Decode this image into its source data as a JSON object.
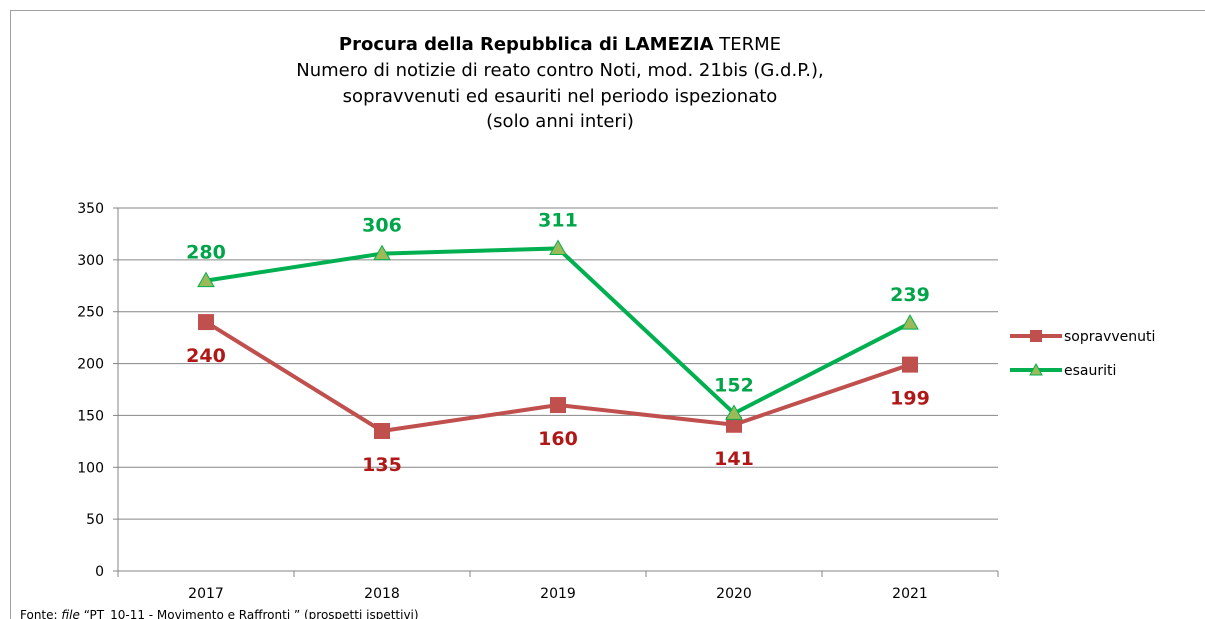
{
  "chart_data": {
    "type": "line",
    "title": [
      "Procura della Repubblica di LAMEZIA",
      "TERME"
    ],
    "subtitle": [
      "Numero di notizie di reato contro Noti, mod. 21bis (G.d.P.),",
      "sopravvenuti ed esauriti nel periodo ispezionato",
      "(solo anni interi)"
    ],
    "categories": [
      "2017",
      "2018",
      "2019",
      "2020",
      "2021"
    ],
    "series": [
      {
        "name": "sopravvenuti",
        "color": "#c0504d",
        "label_color": "#b01818",
        "values": [
          240,
          135,
          160,
          141,
          199
        ]
      },
      {
        "name": "esauriti",
        "color": "#00b050",
        "label_color": "#00a54a",
        "values": [
          280,
          306,
          311,
          152,
          239
        ]
      }
    ],
    "ylim": [
      0,
      350
    ],
    "yticks": [
      0,
      50,
      100,
      150,
      200,
      250,
      300,
      350
    ],
    "grid": true,
    "legend": "right",
    "source": [
      "Fonte:",
      "file",
      "“PT_10-11 - Movimento e Raffronti ” (prospetti ispettivi)"
    ]
  }
}
